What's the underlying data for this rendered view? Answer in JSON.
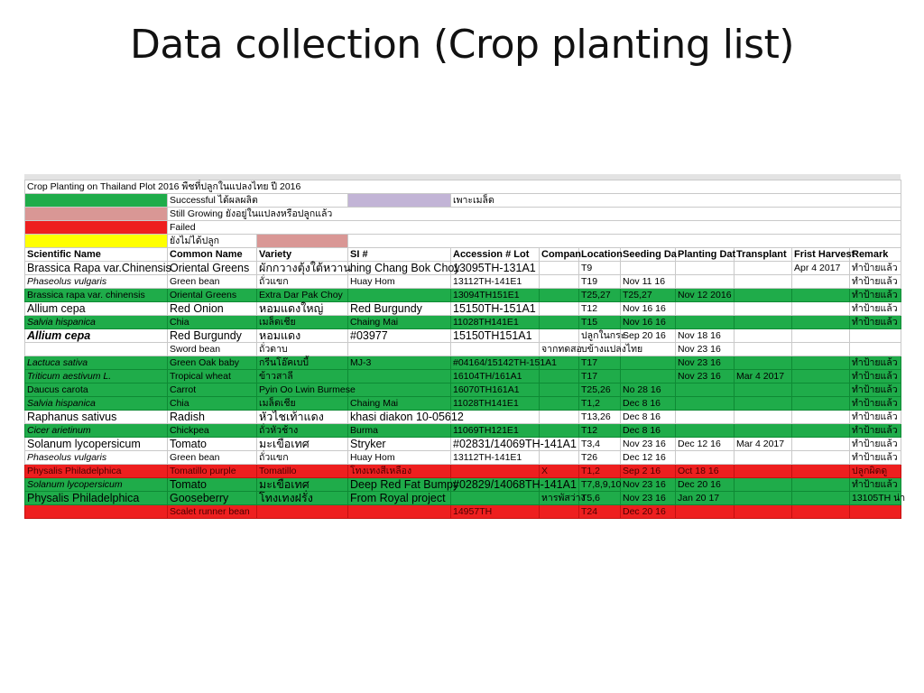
{
  "slide": {
    "title": "Data collection (Crop planting list)"
  },
  "sheet": {
    "title": "Crop Planting on Thailand Plot 2016 พืชที่ปลูกในแปลงไทย ปี 2016",
    "legend": [
      {
        "label": "Successful ได้ผลผลิต",
        "swatch_color": "#1fac4a"
      },
      {
        "label": "Still Growing ยังอยู่ในแปลงหรือปลูกแล้ว",
        "swatch_color": "#d99795"
      },
      {
        "label": "Failed",
        "swatch_color": "#ee1f1f"
      },
      {
        "label": "ยังไม่ได้ปลูก",
        "swatch_color": "#ffff00"
      }
    ],
    "seeding_legend": {
      "label": "เพาะเมล็ด",
      "swatch_color": "#c2b4d6"
    },
    "unlabeled_swatch_color": "#d99795",
    "status_colors": {
      "green": "#1fac4a",
      "red": "#ee1f1f"
    },
    "headers": [
      "Scientific Name",
      "Common Name",
      "Variety",
      "SI #",
      "Accession # Lot",
      "Compan",
      "Location",
      "Seeding Da",
      "Planting Dat",
      "Transplant",
      "Frist Harvest",
      "Remark"
    ],
    "rows": [
      [
        "Brassica Rapa var.Chinensis",
        "Oriental Greens",
        "ผักกวางตุ้งใต้หวาน",
        "hing Chang Bok Choy",
        "13095TH-131A1",
        "",
        "T9",
        "",
        "",
        "",
        "Apr 4 2017",
        "ทำป้ายแล้ว"
      ],
      [
        "Phaseolus vulgaris",
        "Green bean",
        "ถั่วแขก",
        "Huay Hom",
        "13112TH-141E1",
        "",
        "T19",
        "Nov 11 16",
        "",
        "",
        "",
        "ทำป้ายแล้ว"
      ],
      [
        "Brassica rapa var. chinensis",
        "Oriental Greens",
        "Extra Dar Pak Choy",
        "",
        "13094TH151E1",
        "",
        "T25,27",
        "T25,27",
        "Nov 12 2016",
        "",
        "",
        "ทำป้ายแล้ว"
      ],
      [
        "Allium cepa",
        "Red Onion",
        "หอมแดงใหญ่",
        "Red Burgundy",
        "15150TH-151A1",
        "",
        "T12",
        "Nov 16 16",
        "",
        "",
        "",
        "ทำป้ายแล้ว"
      ],
      [
        "Salvia hispanica",
        "Chia",
        "เมล็ดเชีย",
        "Chaing Mai",
        "11028TH141E1",
        "",
        "T15",
        "Nov 16 16",
        "",
        "",
        "",
        "ทำป้ายแล้ว"
      ],
      [
        "Allium cepa",
        "Red Burgundy",
        "หอมแดง",
        "#03977",
        "15150TH151A1",
        "",
        "ปลูกในกระ",
        "Sep 20 16",
        "Nov 18 16",
        "",
        "",
        ""
      ],
      [
        "",
        "Sword bean",
        "ถั่วดาบ",
        "",
        "",
        "จากทดสอ",
        "บข้างแปลงไทย",
        "",
        "Nov 23 16",
        "",
        "",
        ""
      ],
      [
        "Lactuca sativa",
        "Green Oak baby",
        "กรีนโอ๊คเบบี้",
        "MJ-3",
        "#04164/15142TH-151A1",
        "",
        "T17",
        "",
        "Nov 23 16",
        "",
        "",
        "ทำป้ายแล้ว"
      ],
      [
        "Triticum aestivum L.",
        "Tropical wheat",
        "ข้าวสาลี",
        "",
        "16104TH/161A1",
        "",
        "T17",
        "",
        "Nov 23 16",
        "Mar 4 2017",
        "",
        "ทำป้ายแล้ว"
      ],
      [
        "Daucus carota",
        "Carrot",
        "Pyin Oo Lwin Burmese",
        "",
        "16070TH161A1",
        "",
        "T25,26",
        "No 28 16",
        "",
        "",
        "",
        "ทำป้ายแล้ว"
      ],
      [
        "Salvia hispanica",
        "Chia",
        "เมล็ดเชีย",
        "Chaing Mai",
        "11028TH141E1",
        "",
        "T1,2",
        "Dec 8 16",
        "",
        "",
        "",
        "ทำป้ายแล้ว"
      ],
      [
        "Raphanus sativus",
        "Radish",
        "หัวไชเท้าแดง",
        "khasi diakon 10-05612",
        "",
        "",
        "T13,26",
        "Dec 8 16",
        "",
        "",
        "",
        "ทำป้ายแล้ว"
      ],
      [
        "Cicer arietinum",
        "Chickpea",
        "ถั่วหัวช้าง",
        "Burma",
        "11069TH121E1",
        "",
        "T12",
        "Dec 8 16",
        "",
        "",
        "",
        "ทำป้ายแล้ว"
      ],
      [
        "Solanum lycopersicum",
        "Tomato",
        "มะเขือเทศ",
        "Stryker",
        "#02831/14069TH-141A1",
        "",
        "T3,4",
        "Nov 23 16",
        "Dec 12 16",
        "Mar 4 2017",
        "",
        "ทำป้ายแล้ว"
      ],
      [
        "Phaseolus vulgaris",
        "Green bean",
        "ถั่วแขก",
        "Huay Hom",
        "13112TH-141E1",
        "",
        "T26",
        "Dec 12 16",
        "",
        "",
        "",
        "ทำป้ายแล้ว"
      ],
      [
        "Physalis Philadelphica",
        "Tomatillo purple",
        "Tomatillo",
        "โทงเทงสีเหลือง",
        "",
        "X",
        "T1,2",
        "Sep 2 16",
        "Oct 18 16",
        "",
        "",
        "ปลูกผิดดู"
      ],
      [
        "Solanum lycopersicum",
        "Tomato",
        "มะเขือเทศ",
        "Deep Red Fat Bumpy",
        "#02829/14068TH-141A1",
        "",
        "T7,8,9,10",
        "Nov 23 16",
        "Dec 20 16",
        "",
        "",
        "ทำป้ายแล้ว"
      ],
      [
        "Physalis Philadelphica",
        "Gooseberry",
        "โทงเทงฝรั่ง",
        "From Royal project",
        "",
        "หารพัสว่าง",
        "T5,6",
        "Nov 23 16",
        "Jan 20 17",
        "",
        "",
        "13105TH น่า"
      ],
      [
        "",
        "Scalet runner bean",
        "",
        "",
        "14957TH",
        "",
        "T24",
        "Dec 20 16",
        "",
        "",
        "",
        ""
      ]
    ]
  }
}
